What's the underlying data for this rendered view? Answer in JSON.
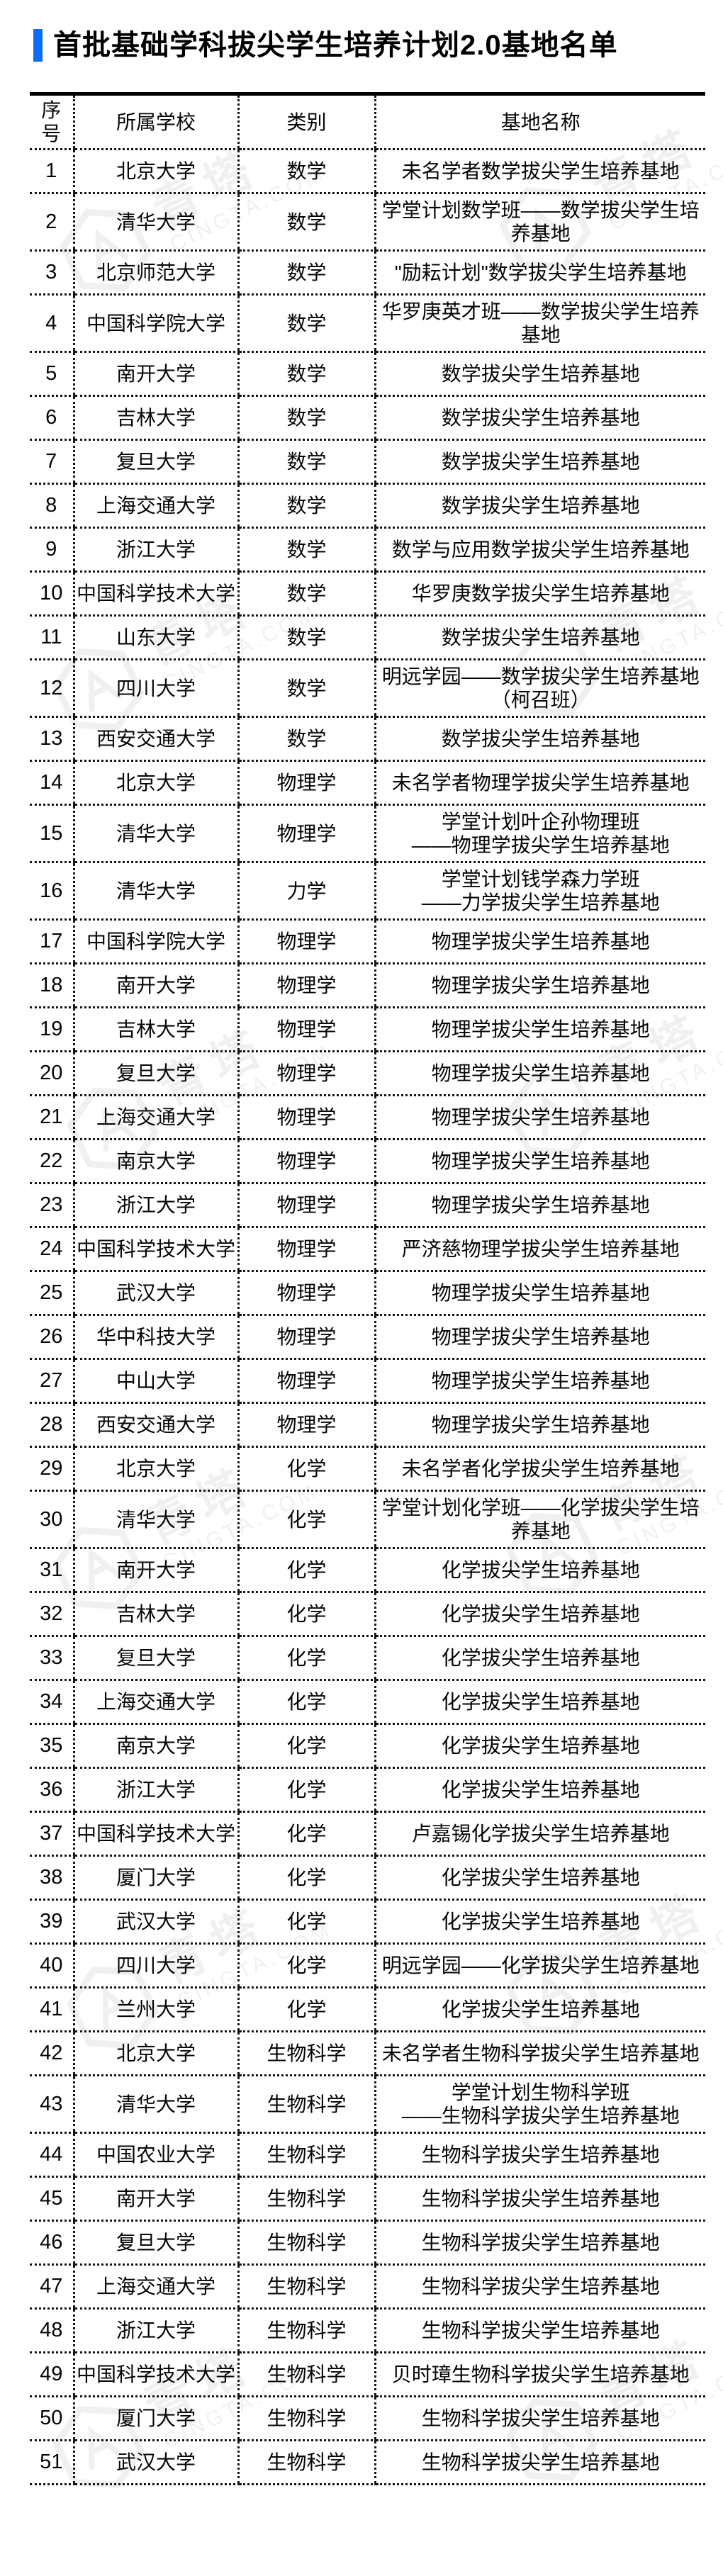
{
  "page": {
    "title": "首批基础学科拔尖学生培养计划2.0基地名单"
  },
  "watermark": {
    "brand": "青塔",
    "domain": "CINGTA.COM"
  },
  "table": {
    "headers": [
      "序号",
      "所属学校",
      "类别",
      "基地名称"
    ],
    "rows": [
      {
        "no": "1",
        "school": "北京大学",
        "category": "数学",
        "base": "未名学者数学拔尖学生培养基地"
      },
      {
        "no": "2",
        "school": "清华大学",
        "category": "数学",
        "base": "学堂计划数学班——数学拔尖学生培养基地"
      },
      {
        "no": "3",
        "school": "北京师范大学",
        "category": "数学",
        "base": "\"励耘计划\"数学拔尖学生培养基地"
      },
      {
        "no": "4",
        "school": "中国科学院大学",
        "category": "数学",
        "base": "华罗庚英才班——数学拔尖学生培养基地"
      },
      {
        "no": "5",
        "school": "南开大学",
        "category": "数学",
        "base": "数学拔尖学生培养基地"
      },
      {
        "no": "6",
        "school": "吉林大学",
        "category": "数学",
        "base": "数学拔尖学生培养基地"
      },
      {
        "no": "7",
        "school": "复旦大学",
        "category": "数学",
        "base": "数学拔尖学生培养基地"
      },
      {
        "no": "8",
        "school": "上海交通大学",
        "category": "数学",
        "base": "数学拔尖学生培养基地"
      },
      {
        "no": "9",
        "school": "浙江大学",
        "category": "数学",
        "base": "数学与应用数学拔尖学生培养基地"
      },
      {
        "no": "10",
        "school": "中国科学技术大学",
        "category": "数学",
        "base": "华罗庚数学拔尖学生培养基地"
      },
      {
        "no": "11",
        "school": "山东大学",
        "category": "数学",
        "base": "数学拔尖学生培养基地"
      },
      {
        "no": "12",
        "school": "四川大学",
        "category": "数学",
        "base": "明远学园——数学拔尖学生培养基地\n（柯召班）"
      },
      {
        "no": "13",
        "school": "西安交通大学",
        "category": "数学",
        "base": "数学拔尖学生培养基地"
      },
      {
        "no": "14",
        "school": "北京大学",
        "category": "物理学",
        "base": "未名学者物理学拔尖学生培养基地"
      },
      {
        "no": "15",
        "school": "清华大学",
        "category": "物理学",
        "base": "学堂计划叶企孙物理班\n——物理学拔尖学生培养基地"
      },
      {
        "no": "16",
        "school": "清华大学",
        "category": "力学",
        "base": "学堂计划钱学森力学班\n——力学拔尖学生培养基地"
      },
      {
        "no": "17",
        "school": "中国科学院大学",
        "category": "物理学",
        "base": "物理学拔尖学生培养基地"
      },
      {
        "no": "18",
        "school": "南开大学",
        "category": "物理学",
        "base": "物理学拔尖学生培养基地"
      },
      {
        "no": "19",
        "school": "吉林大学",
        "category": "物理学",
        "base": "物理学拔尖学生培养基地"
      },
      {
        "no": "20",
        "school": "复旦大学",
        "category": "物理学",
        "base": "物理学拔尖学生培养基地"
      },
      {
        "no": "21",
        "school": "上海交通大学",
        "category": "物理学",
        "base": "物理学拔尖学生培养基地"
      },
      {
        "no": "22",
        "school": "南京大学",
        "category": "物理学",
        "base": "物理学拔尖学生培养基地"
      },
      {
        "no": "23",
        "school": "浙江大学",
        "category": "物理学",
        "base": "物理学拔尖学生培养基地"
      },
      {
        "no": "24",
        "school": "中国科学技术大学",
        "category": "物理学",
        "base": "严济慈物理学拔尖学生培养基地"
      },
      {
        "no": "25",
        "school": "武汉大学",
        "category": "物理学",
        "base": "物理学拔尖学生培养基地"
      },
      {
        "no": "26",
        "school": "华中科技大学",
        "category": "物理学",
        "base": "物理学拔尖学生培养基地"
      },
      {
        "no": "27",
        "school": "中山大学",
        "category": "物理学",
        "base": "物理学拔尖学生培养基地"
      },
      {
        "no": "28",
        "school": "西安交通大学",
        "category": "物理学",
        "base": "物理学拔尖学生培养基地"
      },
      {
        "no": "29",
        "school": "北京大学",
        "category": "化学",
        "base": "未名学者化学拔尖学生培养基地"
      },
      {
        "no": "30",
        "school": "清华大学",
        "category": "化学",
        "base": "学堂计划化学班——化学拔尖学生培养基地"
      },
      {
        "no": "31",
        "school": "南开大学",
        "category": "化学",
        "base": "化学拔尖学生培养基地"
      },
      {
        "no": "32",
        "school": "吉林大学",
        "category": "化学",
        "base": "化学拔尖学生培养基地"
      },
      {
        "no": "33",
        "school": "复旦大学",
        "category": "化学",
        "base": "化学拔尖学生培养基地"
      },
      {
        "no": "34",
        "school": "上海交通大学",
        "category": "化学",
        "base": "化学拔尖学生培养基地"
      },
      {
        "no": "35",
        "school": "南京大学",
        "category": "化学",
        "base": "化学拔尖学生培养基地"
      },
      {
        "no": "36",
        "school": "浙江大学",
        "category": "化学",
        "base": "化学拔尖学生培养基地"
      },
      {
        "no": "37",
        "school": "中国科学技术大学",
        "category": "化学",
        "base": "卢嘉锡化学拔尖学生培养基地"
      },
      {
        "no": "38",
        "school": "厦门大学",
        "category": "化学",
        "base": "化学拔尖学生培养基地"
      },
      {
        "no": "39",
        "school": "武汉大学",
        "category": "化学",
        "base": "化学拔尖学生培养基地"
      },
      {
        "no": "40",
        "school": "四川大学",
        "category": "化学",
        "base": "明远学园——化学拔尖学生培养基地"
      },
      {
        "no": "41",
        "school": "兰州大学",
        "category": "化学",
        "base": "化学拔尖学生培养基地"
      },
      {
        "no": "42",
        "school": "北京大学",
        "category": "生物科学",
        "base": "未名学者生物科学拔尖学生培养基地"
      },
      {
        "no": "43",
        "school": "清华大学",
        "category": "生物科学",
        "base": "学堂计划生物科学班\n——生物科学拔尖学生培养基地"
      },
      {
        "no": "44",
        "school": "中国农业大学",
        "category": "生物科学",
        "base": "生物科学拔尖学生培养基地"
      },
      {
        "no": "45",
        "school": "南开大学",
        "category": "生物科学",
        "base": "生物科学拔尖学生培养基地"
      },
      {
        "no": "46",
        "school": "复旦大学",
        "category": "生物科学",
        "base": "生物科学拔尖学生培养基地"
      },
      {
        "no": "47",
        "school": "上海交通大学",
        "category": "生物科学",
        "base": "生物科学拔尖学生培养基地"
      },
      {
        "no": "48",
        "school": "浙江大学",
        "category": "生物科学",
        "base": "生物科学拔尖学生培养基地"
      },
      {
        "no": "49",
        "school": "中国科学技术大学",
        "category": "生物科学",
        "base": "贝时璋生物科学拔尖学生培养基地"
      },
      {
        "no": "50",
        "school": "厦门大学",
        "category": "生物科学",
        "base": "生物科学拔尖学生培养基地"
      },
      {
        "no": "51",
        "school": "武汉大学",
        "category": "生物科学",
        "base": "生物科学拔尖学生培养基地"
      }
    ]
  }
}
